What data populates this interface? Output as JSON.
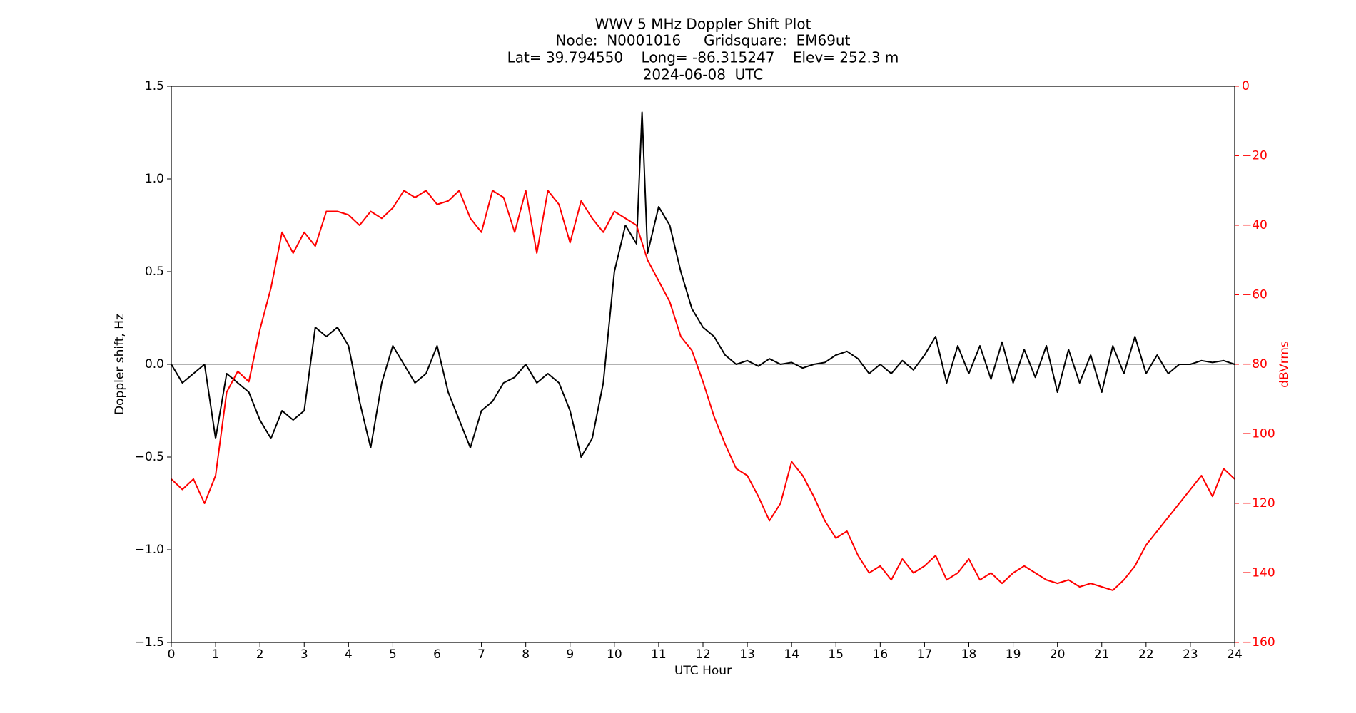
{
  "chart_data": {
    "type": "line",
    "title": [
      "WWV 5 MHz Doppler Shift Plot",
      "Node:  N0001016     Gridsquare:  EM69ut",
      "Lat= 39.794550    Long= -86.315247    Elev= 252.3 m",
      "2024-06-08  UTC"
    ],
    "x_label": "UTC Hour",
    "y_label": "Doppler shift, Hz",
    "y2_label": "dBVrms",
    "x": [
      0,
      0.25,
      0.5,
      0.75,
      1,
      1.25,
      1.5,
      1.75,
      2,
      2.25,
      2.5,
      2.75,
      3,
      3.25,
      3.5,
      3.75,
      4,
      4.25,
      4.5,
      4.75,
      5,
      5.25,
      5.5,
      5.75,
      6,
      6.25,
      6.5,
      6.75,
      7,
      7.25,
      7.5,
      7.75,
      8,
      8.25,
      8.5,
      8.75,
      9,
      9.25,
      9.5,
      9.75,
      10,
      10.25,
      10.5,
      10.625,
      10.75,
      11,
      11.25,
      11.5,
      11.75,
      12,
      12.25,
      12.5,
      12.75,
      13,
      13.25,
      13.5,
      13.75,
      14,
      14.25,
      14.5,
      14.75,
      15,
      15.25,
      15.5,
      15.75,
      16,
      16.25,
      16.5,
      16.75,
      17,
      17.25,
      17.5,
      17.75,
      18,
      18.25,
      18.5,
      18.75,
      19,
      19.25,
      19.5,
      19.75,
      20,
      20.25,
      20.5,
      20.75,
      21,
      21.25,
      21.5,
      21.75,
      22,
      22.25,
      22.5,
      22.75,
      23,
      23.25,
      23.5,
      23.75,
      24
    ],
    "series": [
      {
        "name": "Doppler shift",
        "color": "#000000",
        "axis": "y",
        "values": [
          0,
          -0.1,
          -0.05,
          0,
          -0.4,
          -0.05,
          -0.1,
          -0.15,
          -0.3,
          -0.4,
          -0.25,
          -0.3,
          -0.25,
          0.2,
          0.15,
          0.2,
          0.1,
          -0.2,
          -0.45,
          -0.1,
          0.1,
          0,
          -0.1,
          -0.05,
          0.1,
          -0.15,
          -0.3,
          -0.45,
          -0.25,
          -0.2,
          -0.1,
          -0.07,
          0,
          -0.1,
          -0.05,
          -0.1,
          -0.25,
          -0.5,
          -0.4,
          -0.1,
          0.5,
          0.75,
          0.65,
          1.36,
          0.6,
          0.85,
          0.75,
          0.5,
          0.3,
          0.2,
          0.15,
          0.05,
          0,
          0.02,
          -0.01,
          0.03,
          0,
          0.01,
          -0.02,
          0,
          0.01,
          0.05,
          0.07,
          0.03,
          -0.05,
          0,
          -0.05,
          0.02,
          -0.03,
          0.05,
          0.15,
          -0.1,
          0.1,
          -0.05,
          0.1,
          -0.08,
          0.12,
          -0.1,
          0.08,
          -0.07,
          0.1,
          -0.15,
          0.08,
          -0.1,
          0.05,
          -0.15,
          0.1,
          -0.05,
          0.15,
          -0.05,
          0.05,
          -0.05,
          0,
          0,
          0.02,
          0.01,
          0.02,
          0
        ]
      },
      {
        "name": "dBVrms",
        "color": "#ff0000",
        "axis": "y2",
        "values": [
          -113,
          -116,
          -113,
          -120,
          -112,
          -88,
          -82,
          -85,
          -70,
          -58,
          -42,
          -48,
          -42,
          -46,
          -36,
          -36,
          -37,
          -40,
          -36,
          -38,
          -35,
          -30,
          -32,
          -30,
          -34,
          -33,
          -30,
          -38,
          -42,
          -30,
          -32,
          -42,
          -30,
          -48,
          -30,
          -34,
          -45,
          -33,
          -38,
          -42,
          -36,
          -38,
          -40,
          -45,
          -50,
          -56,
          -62,
          -72,
          -76,
          -85,
          -95,
          -103,
          -110,
          -112,
          -118,
          -125,
          -120,
          -108,
          -112,
          -118,
          -125,
          -130,
          -128,
          -135,
          -140,
          -138,
          -142,
          -136,
          -140,
          -138,
          -135,
          -142,
          -140,
          -136,
          -142,
          -140,
          -143,
          -140,
          -138,
          -140,
          -142,
          -143,
          -142,
          -144,
          -143,
          -144,
          -145,
          -142,
          -138,
          -132,
          -128,
          -124,
          -120,
          -116,
          -112,
          -118,
          -110,
          -113
        ]
      }
    ],
    "reference_line": 0,
    "reference_color": "#999999",
    "xlim": [
      0,
      24
    ],
    "xticks": [
      0,
      1,
      2,
      3,
      4,
      5,
      6,
      7,
      8,
      9,
      10,
      11,
      12,
      13,
      14,
      15,
      16,
      17,
      18,
      19,
      20,
      21,
      22,
      23,
      24
    ],
    "ylim": [
      -1.5,
      1.5
    ],
    "yticks": [
      {
        "value": -1.5,
        "label": "−1.5"
      },
      {
        "value": -1,
        "label": "−1.0"
      },
      {
        "value": -0.5,
        "label": "−0.5"
      },
      {
        "value": 0,
        "label": "0.0"
      },
      0.5,
      {
        "value": 1,
        "label": "1.0"
      },
      1.5
    ],
    "y2lim": [
      -160,
      0
    ],
    "y2ticks": [
      {
        "value": -160,
        "label": "−160"
      },
      {
        "value": -140,
        "label": "−140"
      },
      {
        "value": -120,
        "label": "−120"
      },
      {
        "value": -100,
        "label": "−100"
      },
      {
        "value": -80,
        "label": "−80"
      },
      {
        "value": -60,
        "label": "−60"
      },
      {
        "value": -40,
        "label": "−40"
      },
      {
        "value": -20,
        "label": "−20"
      },
      0
    ],
    "y2_color": "#ff0000",
    "grid": false
  }
}
